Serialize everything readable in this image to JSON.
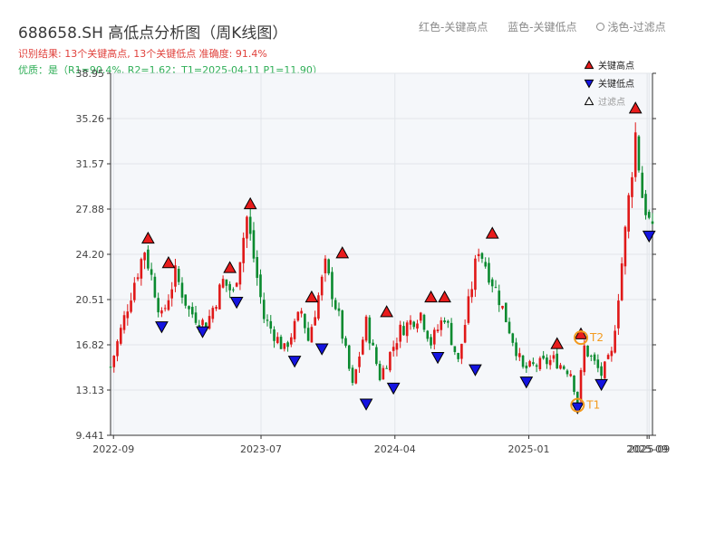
{
  "header": {
    "title": "688658.SH 高低点分析图（周K线图）",
    "result_line": "识别结果: 13个关键高点, 13个关键低点   准确度: 91.4%",
    "quality_line": "优质：是（R1=90.4%, R2=1.62；T1=2025-04-11 P1=11.90）"
  },
  "top_legend": {
    "red": "红色-关键高点",
    "blue": "蓝色-关键低点",
    "circle": "浅色-过滤点"
  },
  "colors": {
    "up": "#e01818",
    "down": "#0a8a2f",
    "high_marker": "#e81c1c",
    "low_marker": "#1414e0",
    "annotation": "#f39a1e",
    "plot_bg": "#f5f7fa",
    "grid": "#e2e5ea"
  },
  "chart_data": {
    "type": "candlestick",
    "title": "688658.SH 高低点分析图（周K线图）",
    "ylim": [
      9.441,
      38.95
    ],
    "yticks": [
      "9.441",
      "13.13",
      "16.82",
      "20.51",
      "24.20",
      "27.88",
      "31.57",
      "35.26",
      "38.95"
    ],
    "x_range": [
      "2022-08-26",
      "2025-09-12"
    ],
    "xticks": [
      {
        "date": "2022-09-01",
        "label": "2022-09"
      },
      {
        "date": "2023-07-01",
        "label": "2023-07"
      },
      {
        "date": "2024-04-01",
        "label": "2024-04"
      },
      {
        "date": "2025-01-01",
        "label": "2025-01"
      },
      {
        "date": "2025-09-01",
        "label": "2025-09"
      },
      {
        "date": "2025-09-05",
        "label": "2025-09"
      }
    ],
    "legend": {
      "position": "top-right",
      "items": [
        {
          "marker": "high",
          "label": "关键高点"
        },
        {
          "marker": "low",
          "label": "关键低点"
        },
        {
          "marker": "filtered",
          "label": "过滤点"
        }
      ]
    },
    "anchors": [
      {
        "date": "2022-08-26",
        "price": 15.0
      },
      {
        "date": "2022-10-14",
        "price": 22.0
      },
      {
        "date": "2022-11-04",
        "price": 24.6
      },
      {
        "date": "2022-12-09",
        "price": 19.0
      },
      {
        "date": "2023-01-06",
        "price": 22.6
      },
      {
        "date": "2023-02-03",
        "price": 19.6
      },
      {
        "date": "2023-03-10",
        "price": 18.4
      },
      {
        "date": "2023-04-14",
        "price": 22.0
      },
      {
        "date": "2023-05-05",
        "price": 21.0
      },
      {
        "date": "2023-06-02",
        "price": 27.2
      },
      {
        "date": "2023-07-07",
        "price": 19.0
      },
      {
        "date": "2023-08-18",
        "price": 16.4
      },
      {
        "date": "2023-09-22",
        "price": 19.6
      },
      {
        "date": "2023-10-06",
        "price": 17.2
      },
      {
        "date": "2023-11-10",
        "price": 23.2
      },
      {
        "date": "2023-12-08",
        "price": 19.0
      },
      {
        "date": "2024-01-05",
        "price": 13.4
      },
      {
        "date": "2024-02-02",
        "price": 18.6
      },
      {
        "date": "2024-03-01",
        "price": 14.2
      },
      {
        "date": "2024-04-12",
        "price": 18.0
      },
      {
        "date": "2024-05-24",
        "price": 19.4
      },
      {
        "date": "2024-06-14",
        "price": 17.0
      },
      {
        "date": "2024-07-12",
        "price": 19.2
      },
      {
        "date": "2024-08-09",
        "price": 15.4
      },
      {
        "date": "2024-09-20",
        "price": 24.8
      },
      {
        "date": "2024-11-01",
        "price": 20.6
      },
      {
        "date": "2024-12-20",
        "price": 14.8
      },
      {
        "date": "2025-02-21",
        "price": 15.6
      },
      {
        "date": "2025-03-28",
        "price": 14.6
      },
      {
        "date": "2025-04-11",
        "price": 12.2
      },
      {
        "date": "2025-04-25",
        "price": 16.6
      },
      {
        "date": "2025-05-30",
        "price": 14.4
      },
      {
        "date": "2025-06-20",
        "price": 16.0
      },
      {
        "date": "2025-07-18",
        "price": 26.0
      },
      {
        "date": "2025-08-08",
        "price": 34.0
      },
      {
        "date": "2025-08-22",
        "price": 29.0
      },
      {
        "date": "2025-09-12",
        "price": 25.8
      }
    ],
    "key_highs": [
      {
        "date": "2022-11-11",
        "price": 25.2
      },
      {
        "date": "2022-12-23",
        "price": 23.2
      },
      {
        "date": "2023-04-28",
        "price": 22.8
      },
      {
        "date": "2023-06-09",
        "price": 28.0
      },
      {
        "date": "2023-10-13",
        "price": 20.4
      },
      {
        "date": "2023-12-15",
        "price": 24.0
      },
      {
        "date": "2024-03-15",
        "price": 19.2
      },
      {
        "date": "2024-06-14",
        "price": 20.4
      },
      {
        "date": "2024-07-12",
        "price": 20.4
      },
      {
        "date": "2024-10-18",
        "price": 25.6
      },
      {
        "date": "2025-02-28",
        "price": 16.6
      },
      {
        "date": "2025-04-18",
        "price": 17.4
      },
      {
        "date": "2025-08-08",
        "price": 35.8
      }
    ],
    "key_lows": [
      {
        "date": "2022-12-09",
        "price": 18.6
      },
      {
        "date": "2023-03-03",
        "price": 18.2
      },
      {
        "date": "2023-05-12",
        "price": 20.6
      },
      {
        "date": "2023-09-08",
        "price": 15.8
      },
      {
        "date": "2023-11-03",
        "price": 16.8
      },
      {
        "date": "2024-02-02",
        "price": 12.3
      },
      {
        "date": "2024-03-29",
        "price": 13.6
      },
      {
        "date": "2024-06-28",
        "price": 16.1
      },
      {
        "date": "2024-09-13",
        "price": 15.1
      },
      {
        "date": "2024-12-27",
        "price": 14.1
      },
      {
        "date": "2025-04-11",
        "price": 12.0
      },
      {
        "date": "2025-05-30",
        "price": 13.9
      },
      {
        "date": "2025-09-05",
        "price": 26.0
      }
    ],
    "annotations": [
      {
        "label": "T1",
        "date": "2025-04-11",
        "price": 11.9
      },
      {
        "label": "T2",
        "date": "2025-04-18",
        "price": 17.4
      }
    ]
  }
}
